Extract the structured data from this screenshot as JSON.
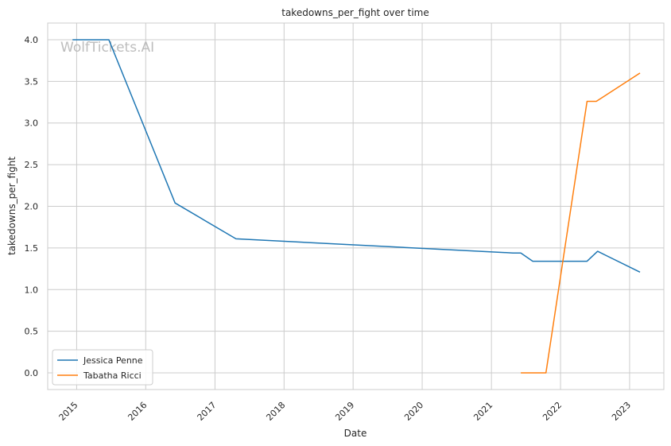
{
  "chart_data": {
    "type": "line",
    "title": "takedowns_per_fight over time",
    "xlabel": "Date",
    "ylabel": "takedowns_per_fight",
    "watermark": "WolfTickets.AI",
    "grid": true,
    "legend_position": "lower-left",
    "xlim": [
      "2014-08-01",
      "2023-07-01"
    ],
    "ylim": [
      -0.2,
      4.2
    ],
    "x_ticks": [
      "2015",
      "2016",
      "2017",
      "2018",
      "2019",
      "2020",
      "2021",
      "2022",
      "2023"
    ],
    "y_ticks": [
      "0.0",
      "0.5",
      "1.0",
      "1.5",
      "2.0",
      "2.5",
      "3.0",
      "3.5",
      "4.0"
    ],
    "series": [
      {
        "name": "Jessica Penne",
        "color": "#1f77b4",
        "points": [
          [
            "2014-12-10",
            4.0
          ],
          [
            "2015-06-20",
            4.0
          ],
          [
            "2016-06-04",
            2.04
          ],
          [
            "2017-04-22",
            1.61
          ],
          [
            "2021-04-24",
            1.44
          ],
          [
            "2021-06-05",
            1.44
          ],
          [
            "2021-08-07",
            1.34
          ],
          [
            "2022-05-21",
            1.34
          ],
          [
            "2022-07-16",
            1.46
          ],
          [
            "2023-02-25",
            1.21
          ]
        ]
      },
      {
        "name": "Tabatha Ricci",
        "color": "#ff7f0e",
        "points": [
          [
            "2021-06-05",
            0.0
          ],
          [
            "2021-10-16",
            0.0
          ],
          [
            "2022-05-21",
            3.26
          ],
          [
            "2022-07-09",
            3.26
          ],
          [
            "2023-02-25",
            3.6
          ]
        ]
      }
    ]
  }
}
